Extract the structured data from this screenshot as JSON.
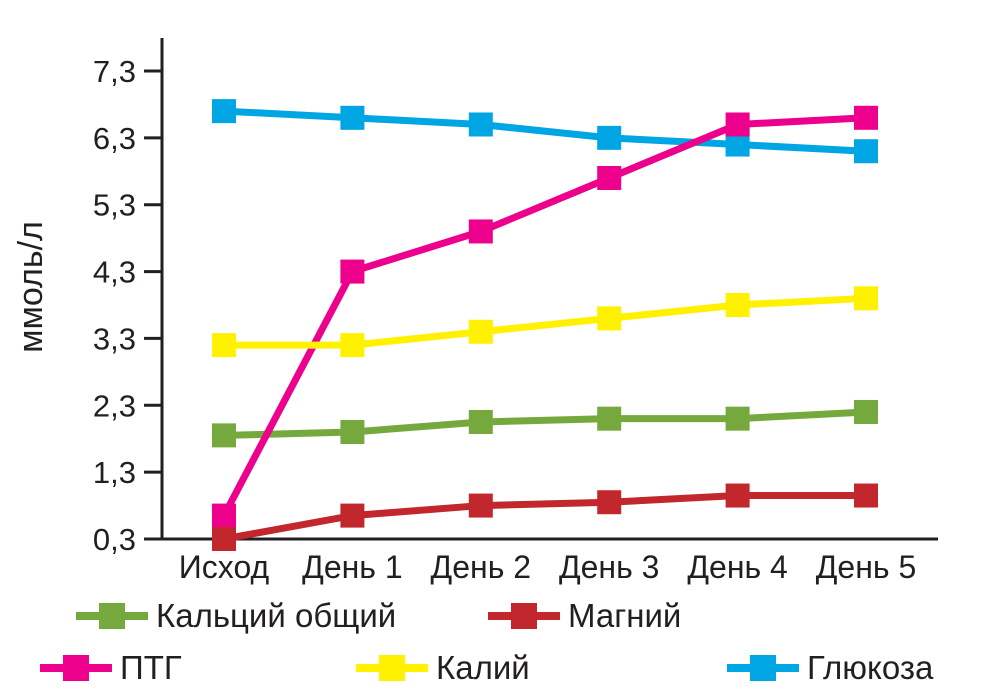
{
  "chart_data": {
    "type": "line",
    "title": "",
    "xlabel": "",
    "ylabel": "ммоль/л",
    "categories": [
      "Исход",
      "День 1",
      "День 2",
      "День 3",
      "День 4",
      "День 5"
    ],
    "y_ticks_labels": [
      "0,3",
      "1,3",
      "2,3",
      "3,3",
      "4,3",
      "5,3",
      "6,3",
      "7,3"
    ],
    "y_ticks_values": [
      0.3,
      1.3,
      2.3,
      3.3,
      4.3,
      5.3,
      6.3,
      7.3
    ],
    "ylim": [
      0.3,
      7.6
    ],
    "grid": false,
    "legend_position": "bottom",
    "marker_shape": "square",
    "axis_color": "#231F20",
    "background_color": "#FFFFFF",
    "series": [
      {
        "name": "Кальций общий",
        "color": "#76A93D",
        "values": [
          1.85,
          1.9,
          2.05,
          2.1,
          2.1,
          2.2
        ]
      },
      {
        "name": "Магний",
        "color": "#C2272D",
        "values": [
          0.3,
          0.65,
          0.8,
          0.85,
          0.95,
          0.95
        ]
      },
      {
        "name": "ПТГ",
        "color": "#EC008C",
        "values": [
          0.65,
          4.3,
          4.9,
          5.7,
          6.5,
          6.6
        ]
      },
      {
        "name": "Калий",
        "color": "#FFF100",
        "values": [
          3.2,
          3.2,
          3.4,
          3.6,
          3.8,
          3.9
        ]
      },
      {
        "name": "Глюкоза",
        "color": "#00A5E3",
        "values": [
          6.7,
          6.6,
          6.5,
          6.3,
          6.2,
          6.1
        ]
      }
    ],
    "legend_rows": [
      [
        0,
        1
      ],
      [
        2,
        3,
        4
      ]
    ]
  }
}
